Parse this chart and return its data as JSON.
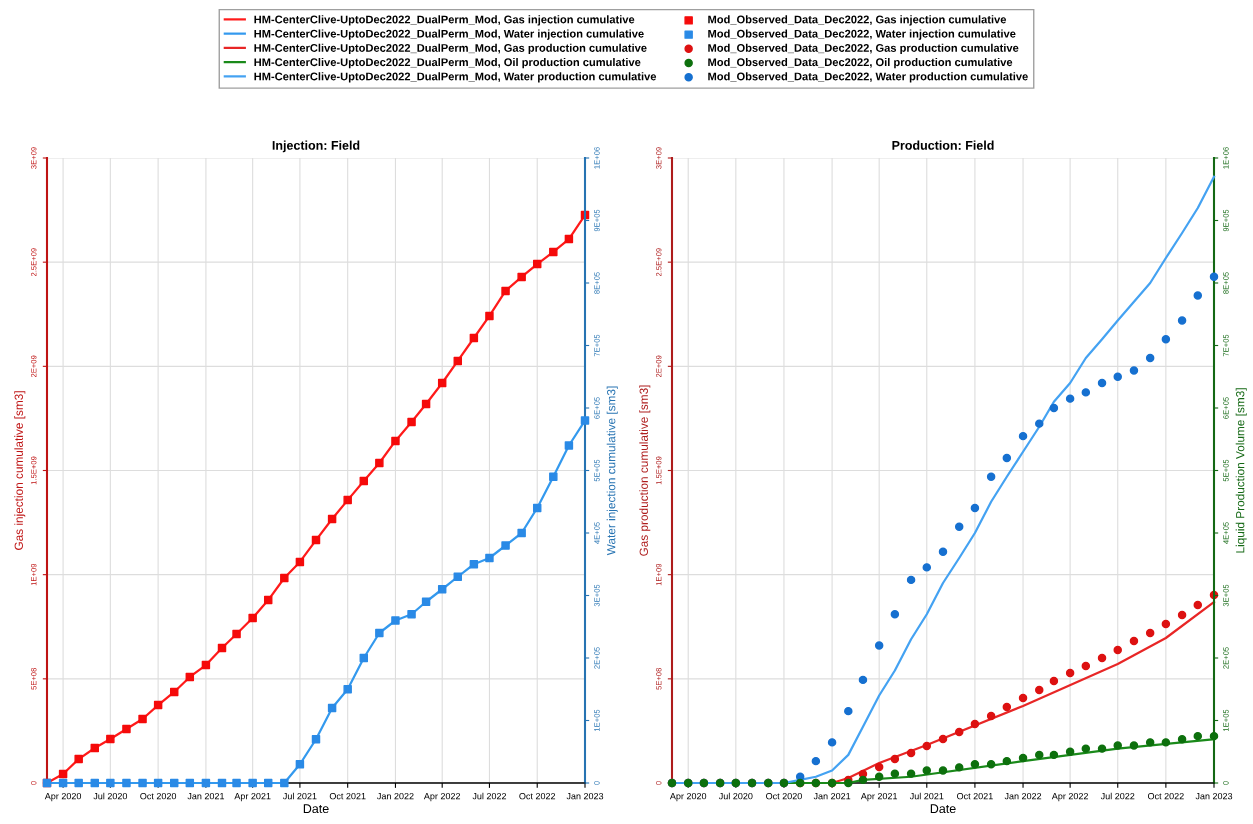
{
  "chart_data": [
    {
      "type": "line",
      "title": "Injection: Field",
      "xlabel": "Date",
      "ylabel": "Gas injection cumulative [sm3]",
      "y2label": "Water injection cumulative [sm3]",
      "x": [
        "2020-03",
        "2020-04",
        "2020-05",
        "2020-06",
        "2020-07",
        "2020-08",
        "2020-09",
        "2020-10",
        "2020-11",
        "2020-12",
        "2021-01",
        "2021-02",
        "2021-03",
        "2021-04",
        "2021-05",
        "2021-06",
        "2021-07",
        "2021-08",
        "2021-09",
        "2021-10",
        "2021-11",
        "2021-12",
        "2022-01",
        "2022-02",
        "2022-03",
        "2022-04",
        "2022-05",
        "2022-06",
        "2022-07",
        "2022-08",
        "2022-09",
        "2022-10",
        "2022-11",
        "2022-12",
        "2023-01"
      ],
      "series": [
        {
          "name": "HM-CenterClive-UptoDec2022_DualPerm_Mod, Gas injection cumulative",
          "marker": "none",
          "color": "#ff1a1a",
          "values": [
            0,
            43000000.0,
            115000000.0,
            168000000.0,
            211000000.0,
            259000000.0,
            307000000.0,
            374000000.0,
            437000000.0,
            509000000.0,
            566000000.0,
            648000000.0,
            715000000.0,
            792000000.0,
            878000000.0,
            984000000.0,
            1061000000.0,
            1166000000.0,
            1267000000.0,
            1358000000.0,
            1450000000.0,
            1536000000.0,
            1642000000.0,
            1733000000.0,
            1819000000.0,
            1920000000.0,
            2026000000.0,
            2136000000.0,
            2242000000.0,
            2362000000.0,
            2429000000.0,
            2491000000.0,
            2549000000.0,
            2611000000.0,
            2726000000.0
          ]
        },
        {
          "name": "HM-CenterClive-UptoDec2022_DualPerm_Mod, Water injection cumulative",
          "marker": "none",
          "axis": "y2",
          "color": "#3399ee",
          "values": [
            0,
            0,
            0,
            0,
            0,
            0,
            0,
            0,
            0,
            0,
            0,
            0,
            0,
            0,
            0,
            0,
            30000,
            70000,
            120000,
            150000,
            200000,
            240000,
            260000,
            270000,
            290000,
            310000,
            330000,
            350000,
            360000,
            380000,
            400000,
            440000,
            490000,
            540000,
            580000
          ]
        },
        {
          "name": "Mod_Observed_Data_Dec2022, Gas injection cumulative",
          "type": "scatter",
          "marker": "square",
          "color": "#f50a0a",
          "values": [
            0,
            43000000.0,
            115000000.0,
            168000000.0,
            211000000.0,
            259000000.0,
            307000000.0,
            374000000.0,
            437000000.0,
            509000000.0,
            566000000.0,
            648000000.0,
            715000000.0,
            792000000.0,
            878000000.0,
            984000000.0,
            1061000000.0,
            1166000000.0,
            1267000000.0,
            1358000000.0,
            1450000000.0,
            1536000000.0,
            1642000000.0,
            1733000000.0,
            1819000000.0,
            1920000000.0,
            2026000000.0,
            2136000000.0,
            2242000000.0,
            2362000000.0,
            2429000000.0,
            2491000000.0,
            2549000000.0,
            2611000000.0,
            2726000000.0
          ]
        },
        {
          "name": "Mod_Observed_Data_Dec2022, Water injection cumulative",
          "type": "scatter",
          "marker": "square",
          "axis": "y2",
          "color": "#2a8ae6",
          "values": [
            0,
            0,
            0,
            0,
            0,
            0,
            0,
            0,
            0,
            0,
            0,
            0,
            0,
            0,
            0,
            0,
            30000,
            70000,
            120000,
            150000,
            200000,
            240000,
            260000,
            270000,
            290000,
            310000,
            330000,
            350000,
            360000,
            380000,
            400000,
            440000,
            490000,
            540000,
            580000
          ]
        }
      ],
      "xlim": [
        "2020-03-01",
        "2023-01-01"
      ],
      "xticks": [
        {
          "value": "2020-04-01",
          "label": "Apr 2020"
        },
        {
          "value": "2020-07-01",
          "label": "Jul 2020"
        },
        {
          "value": "2020-10-01",
          "label": "Oct 2020"
        },
        {
          "value": "2021-01-01",
          "label": "Jan 2021"
        },
        {
          "value": "2021-04-01",
          "label": "Apr 2021"
        },
        {
          "value": "2021-07-01",
          "label": "Jul 2021"
        },
        {
          "value": "2021-10-01",
          "label": "Oct 2021"
        },
        {
          "value": "2022-01-01",
          "label": "Jan 2022"
        },
        {
          "value": "2022-04-01",
          "label": "Apr 2022"
        },
        {
          "value": "2022-07-01",
          "label": "Jul 2022"
        },
        {
          "value": "2022-10-01",
          "label": "Oct 2022"
        },
        {
          "value": "2023-01-01",
          "label": "Jan 2023"
        }
      ],
      "ylim": [
        0,
        3000000000.0
      ],
      "yticks": [
        0,
        {
          "value": 500000000.0,
          "label": "5E+08"
        },
        {
          "value": 1000000000.0,
          "label": "1E+09"
        },
        {
          "value": 1500000000.0,
          "label": "1.5E+09"
        },
        {
          "value": 2000000000.0,
          "label": "2E+09"
        },
        {
          "value": 2500000000.0,
          "label": "2.5E+09"
        },
        {
          "value": 3000000000.0,
          "label": "3E+09"
        }
      ],
      "y2lim": [
        0,
        1000000.0
      ],
      "y2ticks": [
        0,
        {
          "value": 100000.0,
          "label": "1E+05"
        },
        {
          "value": 200000.0,
          "label": "2E+05"
        },
        {
          "value": 300000.0,
          "label": "3E+05"
        },
        {
          "value": 400000.0,
          "label": "4E+05"
        },
        {
          "value": 500000.0,
          "label": "5E+05"
        },
        {
          "value": 600000.0,
          "label": "6E+05"
        },
        {
          "value": 700000.0,
          "label": "7E+05"
        },
        {
          "value": 800000.0,
          "label": "8E+05"
        },
        {
          "value": 900000.0,
          "label": "9E+05"
        },
        {
          "value": 1000000.0,
          "label": "1E+06"
        }
      ],
      "grid": true,
      "legend": "top"
    },
    {
      "type": "line",
      "title": "Production: Field",
      "xlabel": "Date",
      "ylabel": "Gas production cumulative [sm3]",
      "y2label": "Liquid Production Volume [sm3]",
      "x": [
        "2020-03",
        "2020-04",
        "2020-05",
        "2020-06",
        "2020-07",
        "2020-08",
        "2020-09",
        "2020-10",
        "2020-11",
        "2020-12",
        "2021-01",
        "2021-02",
        "2021-03",
        "2021-04",
        "2021-05",
        "2021-06",
        "2021-07",
        "2021-08",
        "2021-09",
        "2021-10",
        "2021-11",
        "2021-12",
        "2022-01",
        "2022-02",
        "2022-03",
        "2022-04",
        "2022-05",
        "2022-06",
        "2022-07",
        "2022-08",
        "2022-09",
        "2022-10",
        "2022-11",
        "2022-12",
        "2023-01"
      ],
      "series": [
        {
          "name": "HM-CenterClive-UptoDec2022_DualPerm_Mod, Gas production cumulative",
          "marker": "none",
          "color": "#e82626",
          "x": [
            "2020-03",
            "2021-01",
            "2021-02",
            "2021-04",
            "2021-07",
            "2022-01",
            "2022-07",
            "2022-10",
            "2023-01"
          ],
          "values": [
            0,
            0,
            24000000.0,
            96000000.0,
            182000000.0,
            370000000.0,
            571000000.0,
            696000000.0,
            869000000.0
          ]
        },
        {
          "name": "HM-CenterClive-UptoDec2022_DualPerm_Mod, Oil production cumulative",
          "marker": "none",
          "axis": "y2",
          "color": "#1a8a1a",
          "x": [
            "2020-03",
            "2021-02",
            "2021-03",
            "2021-06",
            "2022-01",
            "2022-07",
            "2023-01"
          ],
          "values": [
            0,
            0,
            5000,
            10000,
            35000,
            55000,
            70000
          ]
        },
        {
          "name": "HM-CenterClive-UptoDec2022_DualPerm_Mod, Water production cumulative",
          "marker": "none",
          "axis": "y2",
          "color": "#44a2f2",
          "x": [
            "2020-03",
            "2020-10",
            "2020-11",
            "2020-12",
            "2021-01",
            "2021-02",
            "2021-03",
            "2021-04",
            "2021-05",
            "2021-06",
            "2021-07",
            "2021-08",
            "2021-09",
            "2021-10",
            "2021-11",
            "2021-12",
            "2022-01",
            "2022-02",
            "2022-03",
            "2022-04",
            "2022-05",
            "2022-06",
            "2022-07",
            "2022-08",
            "2022-09",
            "2022-10",
            "2022-11",
            "2022-12",
            "2023-01"
          ],
          "values": [
            0,
            0,
            5000,
            10000,
            20000,
            45000,
            90000,
            140000,
            180000,
            230000,
            270000,
            320000,
            360000,
            400000,
            450000,
            490000,
            530000,
            570000,
            610000,
            640000,
            680000,
            710000,
            740000,
            770000,
            800000,
            840000,
            880000,
            920000,
            970000
          ]
        },
        {
          "name": "Mod_Observed_Data_Dec2022, Gas production cumulative",
          "type": "scatter",
          "marker": "circle",
          "color": "#dd1111",
          "values": [
            0,
            0,
            0,
            0,
            0,
            0,
            0,
            0,
            0,
            0,
            0,
            14000000.0,
            43000000.0,
            77000000.0,
            115000000.0,
            144000000.0,
            178000000.0,
            211000000.0,
            245000000.0,
            283000000.0,
            322000000.0,
            365000000.0,
            408000000.0,
            446000000.0,
            490000000.0,
            528000000.0,
            562000000.0,
            600000000.0,
            638000000.0,
            682000000.0,
            720000000.0,
            763000000.0,
            806000000.0,
            854000000.0,
            902000000.0
          ]
        },
        {
          "name": "Mod_Observed_Data_Dec2022, Oil production cumulative",
          "type": "scatter",
          "marker": "circle",
          "axis": "y2",
          "color": "#0d700d",
          "values": [
            0,
            0,
            0,
            0,
            0,
            0,
            0,
            0,
            0,
            0,
            0,
            0,
            5000,
            10000,
            15000,
            15000,
            20000,
            20000,
            25000,
            30000,
            30000,
            35000,
            40000,
            45000,
            45000,
            50000,
            55000,
            55000,
            60000,
            60000,
            65000,
            65000,
            70000,
            75000,
            75000
          ]
        },
        {
          "name": "Mod_Observed_Data_Dec2022, Water production cumulative",
          "type": "scatter",
          "marker": "circle",
          "axis": "y2",
          "color": "#1670d0",
          "values": [
            0,
            0,
            0,
            0,
            0,
            0,
            0,
            0,
            10000,
            35000,
            65000,
            115000,
            165000,
            220000,
            270000,
            325000,
            345000,
            370000,
            410000,
            440000,
            490000,
            520000,
            555000,
            575000,
            600000,
            615000,
            625000,
            640000,
            650000,
            660000,
            680000,
            710000,
            740000,
            780000,
            810000
          ]
        }
      ],
      "xlim": [
        "2020-03-01",
        "2023-01-01"
      ],
      "xticks": [
        {
          "value": "2020-04-01",
          "label": "Apr 2020"
        },
        {
          "value": "2020-07-01",
          "label": "Jul 2020"
        },
        {
          "value": "2020-10-01",
          "label": "Oct 2020"
        },
        {
          "value": "2021-01-01",
          "label": "Jan 2021"
        },
        {
          "value": "2021-04-01",
          "label": "Apr 2021"
        },
        {
          "value": "2021-07-01",
          "label": "Jul 2021"
        },
        {
          "value": "2021-10-01",
          "label": "Oct 2021"
        },
        {
          "value": "2022-01-01",
          "label": "Jan 2022"
        },
        {
          "value": "2022-04-01",
          "label": "Apr 2022"
        },
        {
          "value": "2022-07-01",
          "label": "Jul 2022"
        },
        {
          "value": "2022-10-01",
          "label": "Oct 2022"
        },
        {
          "value": "2023-01-01",
          "label": "Jan 2023"
        }
      ],
      "ylim": [
        0,
        3000000000.0
      ],
      "yticks": [
        0,
        {
          "value": 500000000.0,
          "label": "5E+08"
        },
        {
          "value": 1000000000.0,
          "label": "1E+09"
        },
        {
          "value": 1500000000.0,
          "label": "1.5E+09"
        },
        {
          "value": 2000000000.0,
          "label": "2E+09"
        },
        {
          "value": 2500000000.0,
          "label": "2.5E+09"
        },
        {
          "value": 3000000000.0,
          "label": "3E+09"
        }
      ],
      "y2lim": [
        0,
        1000000.0
      ],
      "y2ticks": [
        0,
        {
          "value": 100000.0,
          "label": "1E+05"
        },
        {
          "value": 200000.0,
          "label": "2E+05"
        },
        {
          "value": 300000.0,
          "label": "3E+05"
        },
        {
          "value": 400000.0,
          "label": "4E+05"
        },
        {
          "value": 500000.0,
          "label": "5E+05"
        },
        {
          "value": 600000.0,
          "label": "6E+05"
        },
        {
          "value": 700000.0,
          "label": "7E+05"
        },
        {
          "value": 800000.0,
          "label": "8E+05"
        },
        {
          "value": 900000.0,
          "label": "9E+05"
        },
        {
          "value": 1000000.0,
          "label": "1E+06"
        }
      ],
      "grid": true,
      "legend": "top"
    }
  ]
}
